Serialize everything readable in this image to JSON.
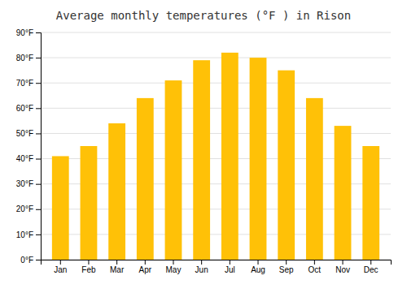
{
  "chart_data": {
    "type": "bar",
    "title": "Average monthly temperatures (°F ) in Rison",
    "categories": [
      "Jan",
      "Feb",
      "Mar",
      "Apr",
      "May",
      "Jun",
      "Jul",
      "Aug",
      "Sep",
      "Oct",
      "Nov",
      "Dec"
    ],
    "values": [
      41,
      45,
      54,
      64,
      71,
      79,
      82,
      80,
      75,
      64,
      53,
      45
    ],
    "color": "#FFC107",
    "ylim": [
      0,
      90
    ],
    "yticks": [
      {
        "value": 0,
        "label": "0°F"
      },
      {
        "value": 10,
        "label": "10°F"
      },
      {
        "value": 20,
        "label": "20°F"
      },
      {
        "value": 30,
        "label": "30°F"
      },
      {
        "value": 40,
        "label": "40°F"
      },
      {
        "value": 50,
        "label": "50°F"
      },
      {
        "value": 60,
        "label": "60°F"
      },
      {
        "value": 70,
        "label": "70°F"
      },
      {
        "value": 80,
        "label": "80°F"
      },
      {
        "value": 90,
        "label": "90°F"
      }
    ],
    "grid": true
  }
}
